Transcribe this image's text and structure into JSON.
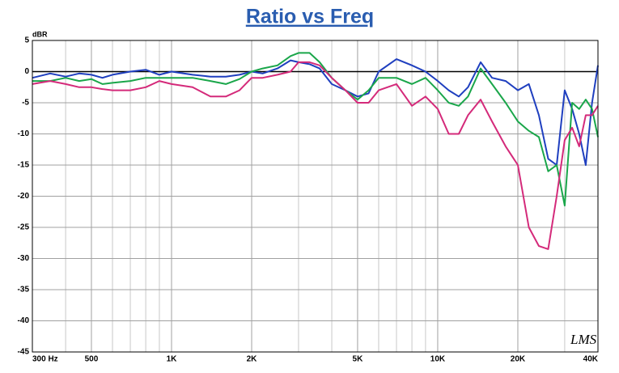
{
  "chart_data": {
    "type": "line",
    "title": "Ratio vs Freq",
    "y_label": "dBR",
    "watermark": "LMS",
    "xscale": "log",
    "xlim": [
      300,
      40000
    ],
    "ylim": [
      -45,
      5
    ],
    "xticks": [
      {
        "value": 300,
        "label": "300 Hz"
      },
      500,
      {
        "value": 1000,
        "label": "1K"
      },
      {
        "value": 2000,
        "label": "2K"
      },
      {
        "value": 5000,
        "label": "5K"
      },
      {
        "value": 10000,
        "label": "10K"
      },
      {
        "value": 20000,
        "label": "20K"
      },
      {
        "value": 40000,
        "label": "40K"
      }
    ],
    "yticks": [
      5,
      0,
      -5,
      -10,
      -15,
      -20,
      -25,
      -30,
      -35,
      -40,
      -45
    ],
    "x_minor_grid": [
      400,
      600,
      700,
      800,
      900,
      3000,
      4000,
      6000,
      7000,
      8000,
      9000,
      30000
    ],
    "grid": true,
    "zero_line": true,
    "x": [
      300,
      350,
      400,
      450,
      500,
      550,
      600,
      700,
      800,
      900,
      1000,
      1200,
      1400,
      1600,
      1800,
      2000,
      2200,
      2500,
      2800,
      3000,
      3300,
      3600,
      4000,
      4500,
      5000,
      5500,
      6000,
      7000,
      8000,
      9000,
      10000,
      11000,
      12000,
      13000,
      14500,
      16000,
      18000,
      20000,
      22000,
      24000,
      26000,
      28000,
      30000,
      32000,
      34000,
      36000,
      38000,
      40000
    ],
    "series": [
      {
        "color": "#1f3fbf",
        "values": [
          -1,
          -0.3,
          -0.8,
          -0.3,
          -0.5,
          -1,
          -0.5,
          0,
          0.3,
          -0.5,
          0,
          -0.5,
          -0.8,
          -0.8,
          -0.5,
          0,
          -0.3,
          0.5,
          1.8,
          1.5,
          1.2,
          0.5,
          -2,
          -3,
          -4,
          -3.5,
          0,
          2,
          1,
          0,
          -1.5,
          -3,
          -4,
          -2.5,
          1.5,
          -1,
          -1.5,
          -3,
          -2,
          -7,
          -14,
          -15,
          -3,
          -6,
          -10,
          -15,
          -5,
          1
        ]
      },
      {
        "color": "#1aa64a",
        "values": [
          -1.5,
          -1.5,
          -1,
          -1.5,
          -1.2,
          -2,
          -1.8,
          -1.5,
          -1,
          -1,
          -1,
          -1,
          -1.5,
          -2,
          -1.2,
          0,
          0.5,
          1,
          2.5,
          3,
          3,
          1.5,
          -1,
          -3,
          -4.5,
          -3,
          -1,
          -1,
          -2,
          -1,
          -3,
          -5,
          -5.5,
          -4,
          0.5,
          -2,
          -5,
          -8,
          -9.5,
          -10.5,
          -16,
          -15,
          -21.5,
          -5,
          -6,
          -4.5,
          -6,
          -10.5
        ]
      },
      {
        "color": "#d42a7a",
        "values": [
          -2,
          -1.5,
          -2,
          -2.5,
          -2.5,
          -2.8,
          -3,
          -3,
          -2.5,
          -1.5,
          -2,
          -2.5,
          -4,
          -4,
          -3,
          -1,
          -1,
          -0.5,
          0,
          1.5,
          1.5,
          1,
          -1,
          -3,
          -5,
          -5,
          -3,
          -2,
          -5.5,
          -4,
          -6,
          -10,
          -10,
          -7,
          -4.5,
          -8,
          -12,
          -15,
          -25,
          -28,
          -28.5,
          -20,
          -11,
          -9,
          -12,
          -7,
          -7,
          -5.5
        ]
      }
    ]
  }
}
